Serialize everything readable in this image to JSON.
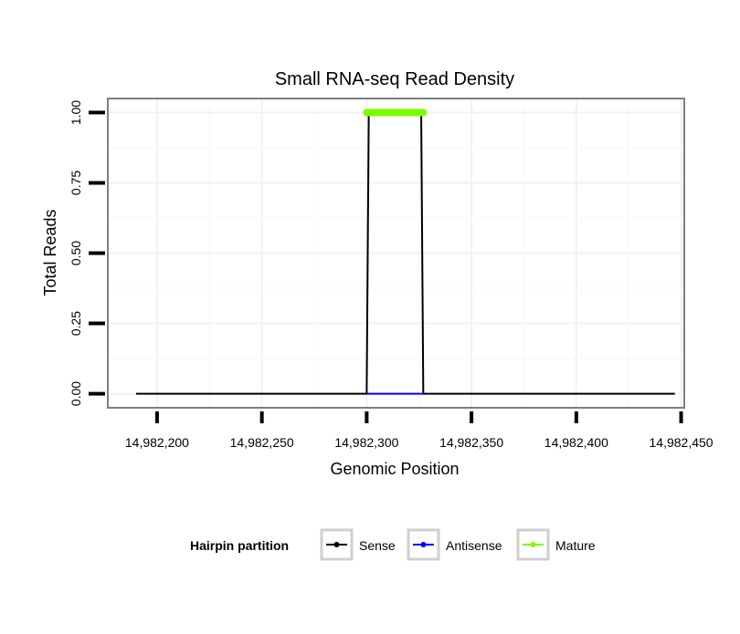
{
  "chart_data": {
    "type": "line",
    "title": "Small RNA-seq Read Density",
    "xlabel": "Genomic Position",
    "ylabel": "Total Reads",
    "xlim": [
      14982176.5,
      14982451.5
    ],
    "ylim": [
      -0.05,
      1.05
    ],
    "x_ticks": [
      14982200,
      14982250,
      14982300,
      14982350,
      14982400,
      14982450
    ],
    "x_tick_labels": [
      "14,982,200",
      "14,982,250",
      "14,982,300",
      "14,982,350",
      "14,982,400",
      "14,982,450"
    ],
    "y_ticks": [
      0,
      0.25,
      0.5,
      0.75,
      1.0
    ],
    "y_tick_labels": [
      "0.00",
      "0.25",
      "0.50",
      "0.75",
      "1.00"
    ],
    "grid": true,
    "legend": {
      "title": "Hairpin partition",
      "placement": "bottom",
      "entries": [
        "Sense",
        "Antisense",
        "Mature"
      ]
    },
    "series": [
      {
        "name": "Sense",
        "color": "#000000",
        "marker": "none",
        "x": [
          14982190,
          14982300,
          14982301,
          14982326,
          14982327,
          14982447
        ],
        "y": [
          0,
          0,
          1,
          1,
          0,
          0
        ]
      },
      {
        "name": "Antisense",
        "color": "#0000ff",
        "marker": "none",
        "x": [
          14982300,
          14982327
        ],
        "y": [
          0,
          0
        ]
      },
      {
        "name": "Mature",
        "color": "#7cfc00",
        "marker": "thick",
        "x": [
          14982300,
          14982327
        ],
        "y": [
          1,
          1
        ]
      }
    ]
  }
}
